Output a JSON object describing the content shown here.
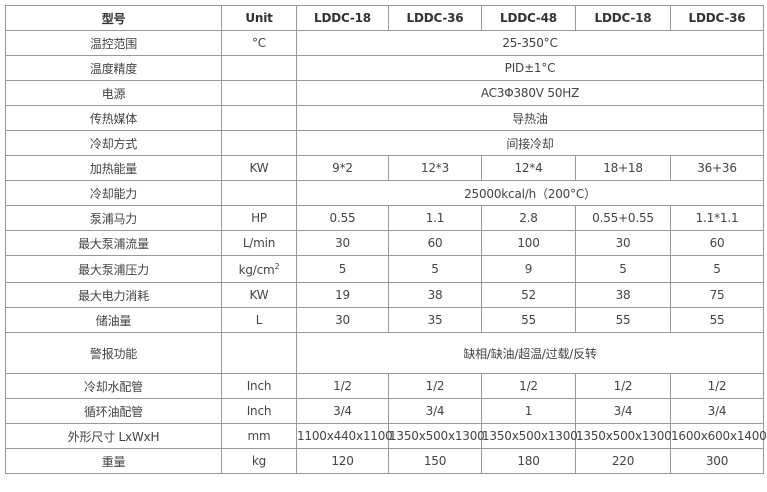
{
  "header": [
    "型号",
    "Unit",
    "LDDC-18",
    "LDDC-36",
    "LDDC-48",
    "LDDC-18",
    "LDDC-36"
  ],
  "rows": [
    {
      "label": "温控范围",
      "unit": "°C",
      "span": "25-350°C"
    },
    {
      "label": "温度精度",
      "unit": "",
      "span": "PID±1°C"
    },
    {
      "label": "电源",
      "unit": "",
      "span": "AC3Φ380V 50HZ"
    },
    {
      "label": "传热媒体",
      "unit": "",
      "span": "导热油"
    },
    {
      "label": "冷却方式",
      "unit": "",
      "span": "间接冷却"
    },
    {
      "label": "加热能量",
      "unit": "KW",
      "values": [
        "9*2",
        "12*3",
        "12*4",
        "18+18",
        "36+36"
      ]
    },
    {
      "label": "冷却能力",
      "unit": "",
      "span": "25000kcal/h（200°C）"
    },
    {
      "label": "泵浦马力",
      "unit": "HP",
      "values": [
        "0.55",
        "1.1",
        "2.8",
        "0.55+0.55",
        "1.1*1.1"
      ]
    },
    {
      "label": "最大泵浦流量",
      "unit": "L/min",
      "values": [
        "30",
        "60",
        "100",
        "30",
        "60"
      ]
    },
    {
      "label": "最大泵浦压力",
      "unit": "kg/cm",
      "unit_sup": "2",
      "values": [
        "5",
        "5",
        "9",
        "5",
        "5"
      ]
    },
    {
      "label": "最大电力消耗",
      "unit": "KW",
      "values": [
        "19",
        "38",
        "52",
        "38",
        "75"
      ]
    },
    {
      "label": "储油量",
      "unit": "L",
      "values": [
        "30",
        "35",
        "55",
        "55",
        "55"
      ]
    },
    {
      "label": "警报功能",
      "unit": "",
      "span": "缺相/缺油/超温/过载/反转"
    },
    {
      "label": "冷却水配管",
      "unit": "Inch",
      "values": [
        "1/2",
        "1/2",
        "1/2",
        "1/2",
        "1/2"
      ]
    },
    {
      "label": "循环油配管",
      "unit": "Inch",
      "values": [
        "3/4",
        "3/4",
        "1",
        "3/4",
        "3/4"
      ]
    },
    {
      "label": "外形尺寸 LxWxH",
      "unit": "mm",
      "values": [
        "1100x440x1100",
        "1350x500x1300",
        "1350x500x1300",
        "1350x500x1300",
        "1600x600x1400"
      ]
    },
    {
      "label": "重量",
      "unit": "kg",
      "values": [
        "120",
        "150",
        "180",
        "220",
        "300"
      ]
    }
  ]
}
